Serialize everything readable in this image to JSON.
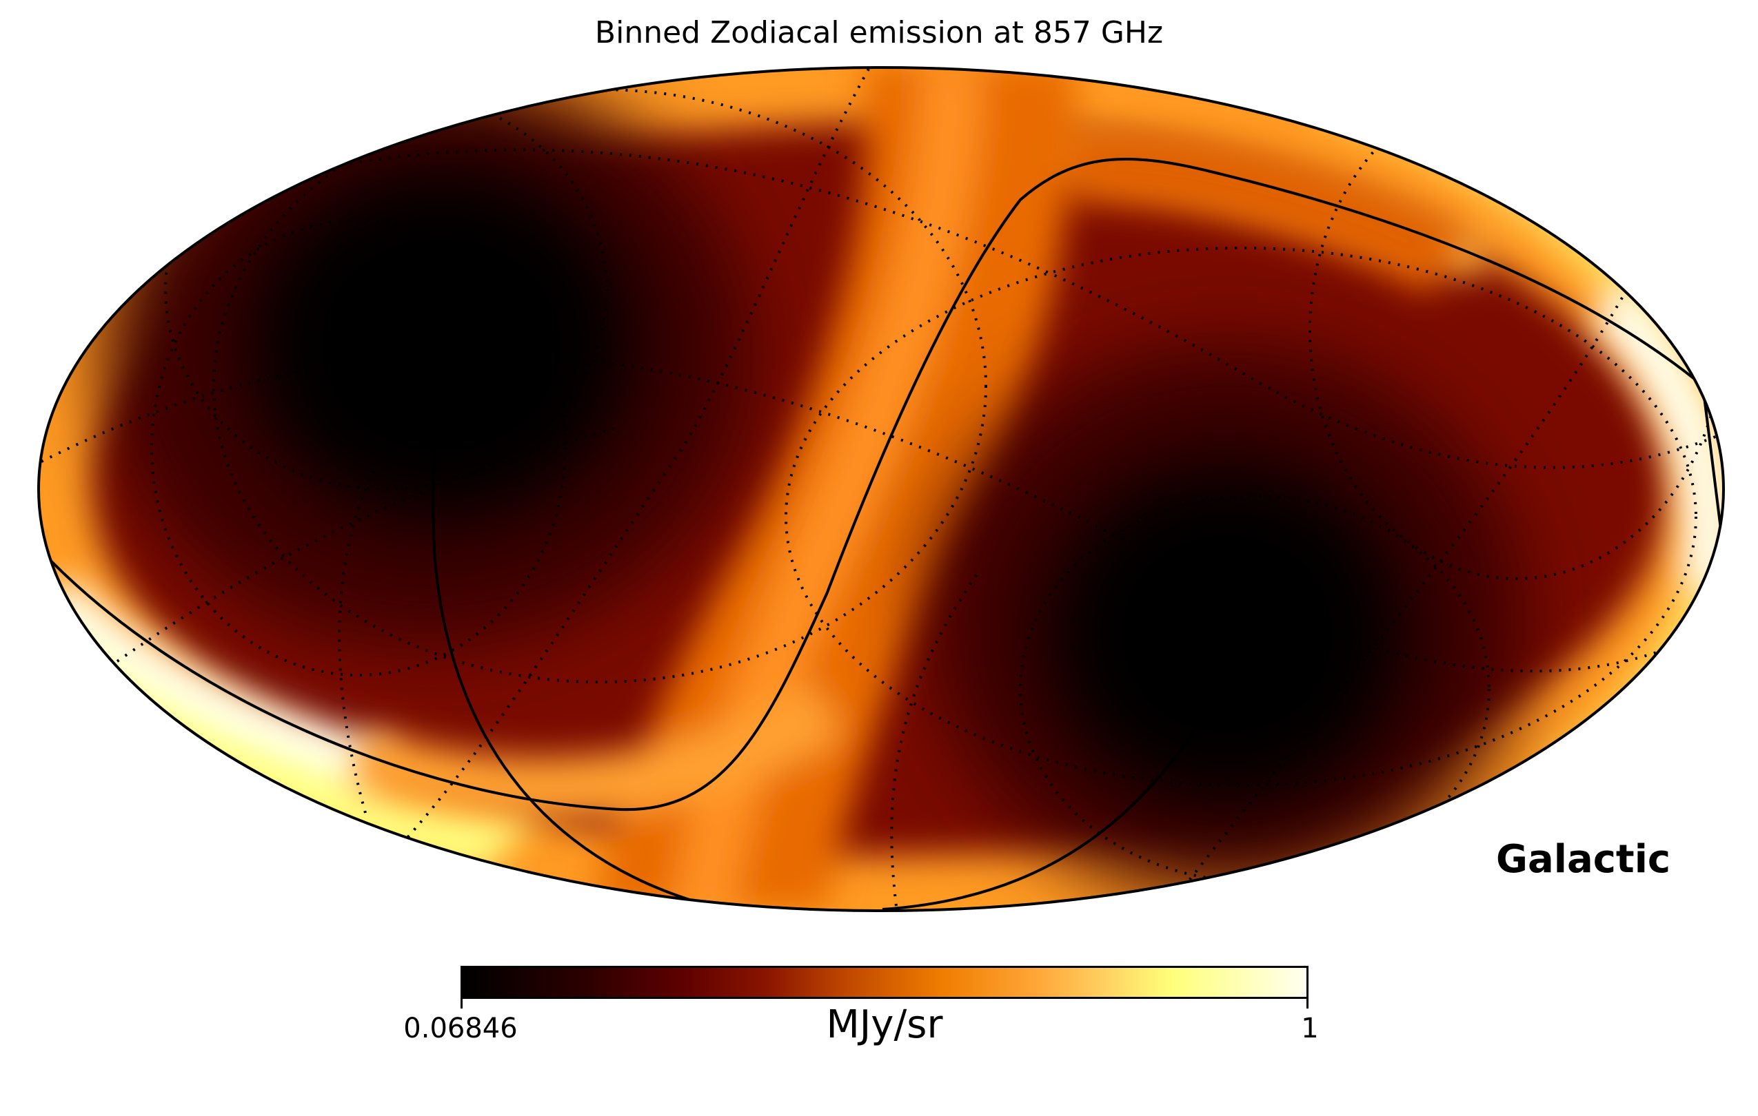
{
  "title": "Binned Zodiacal emission  at 857 GHz",
  "projection": "Mollweide",
  "coordinate_system": "Galactic",
  "colorbar": {
    "min_label": "0.06846",
    "max_label": "1",
    "unit": "MJy/sr",
    "colormap": "afmhot"
  },
  "colors": {
    "dark": "#000000",
    "deep_red": "#5e0000",
    "orange": "#f07e00",
    "yellow": "#ffff7a",
    "white": "#fffff0"
  }
}
